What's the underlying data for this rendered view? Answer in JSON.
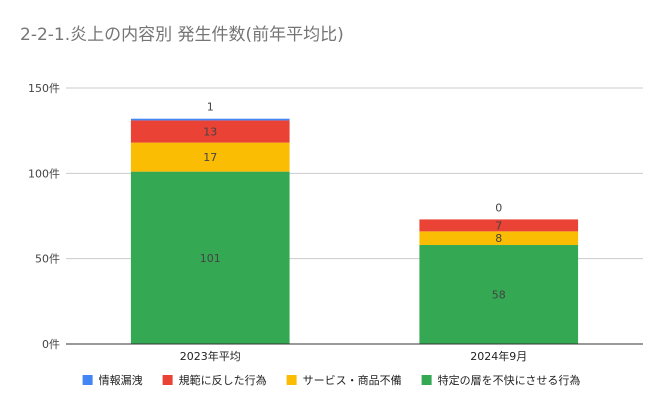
{
  "chart_data": {
    "type": "bar",
    "stacked": true,
    "title": "2-2-1.炎上の内容別 発生件数(前年平均比)",
    "categories": [
      "2023年平均",
      "2024年9月"
    ],
    "series": [
      {
        "name": "特定の層を不快にさせる行為",
        "values": [
          101,
          58
        ],
        "color": "#34a853"
      },
      {
        "name": "サービス・商品不備",
        "values": [
          17,
          8
        ],
        "color": "#fbbc04"
      },
      {
        "name": "規範に反した行為",
        "values": [
          13,
          7
        ],
        "color": "#ea4335"
      },
      {
        "name": "情報漏洩",
        "values": [
          1,
          0
        ],
        "color": "#4285f4"
      }
    ],
    "legend_order": [
      "情報漏洩",
      "規範に反した行為",
      "サービス・商品不備",
      "特定の層を不快にさせる行為"
    ],
    "legend_position": "bottom",
    "yticks": [
      0,
      50,
      100,
      150
    ],
    "ytick_labels": [
      "0件",
      "50件",
      "100件",
      "150件"
    ],
    "ylim": [
      0,
      150
    ],
    "grid": true,
    "xlabel": "",
    "ylabel": ""
  }
}
